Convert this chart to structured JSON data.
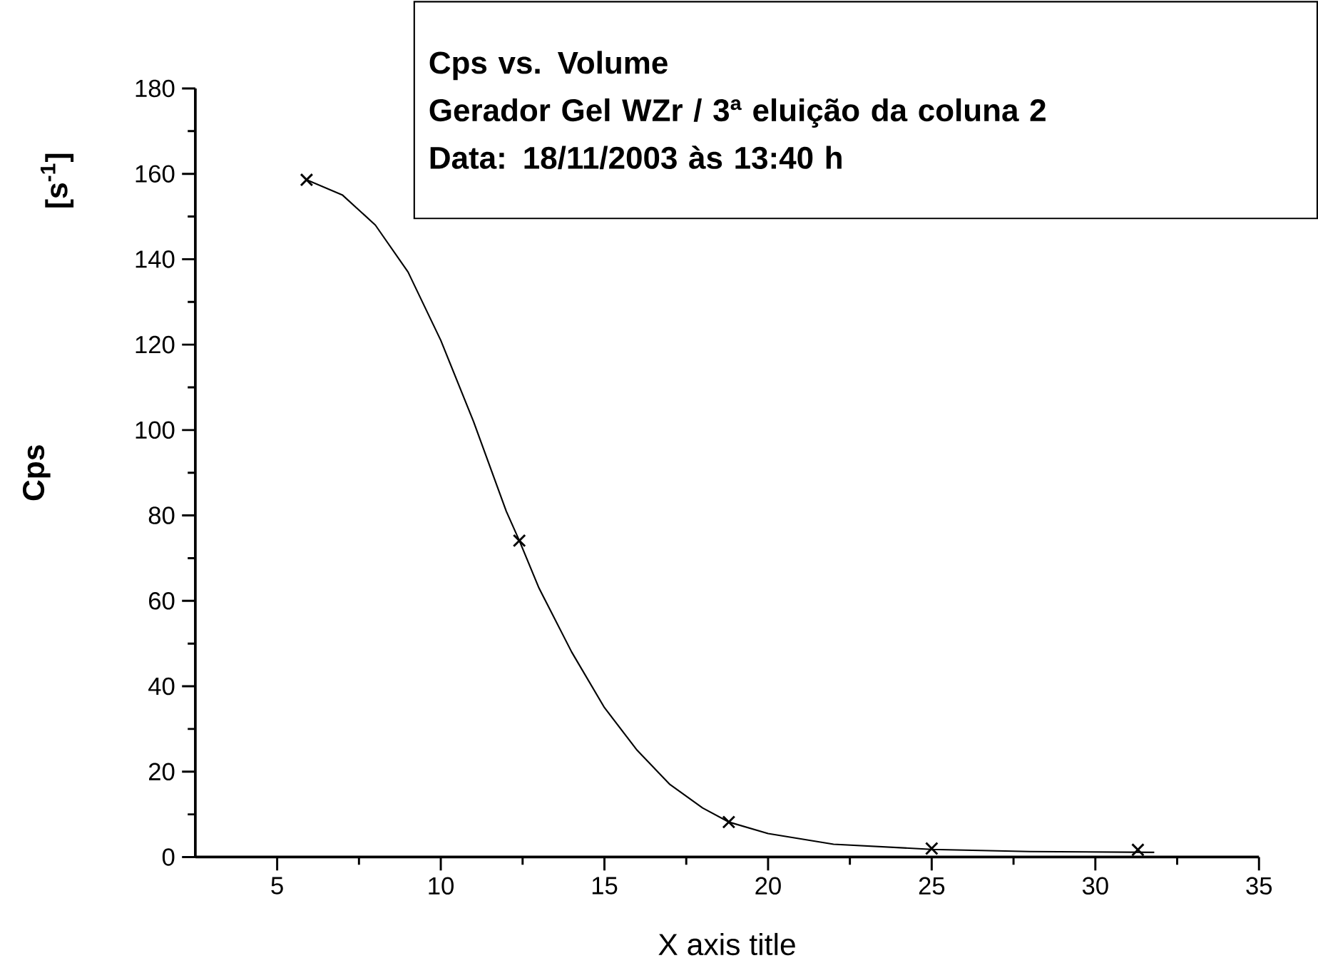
{
  "chart_data": {
    "type": "scatter",
    "title": "Cps vs. Volume",
    "subtitle": "Gerador Gel WZr / 3ª eluição da coluna 2",
    "annotations": [
      "Data: 18/11/2003 às 13:40 h",
      "[s$^{-1}$]"
    ],
    "xlabel": "X axis title",
    "ylabel": "Cps",
    "xlim": [
      2.5,
      35
    ],
    "ylim": [
      0,
      180
    ],
    "xticks": [
      5,
      10,
      15,
      20,
      25,
      30,
      35
    ],
    "yticks": [
      0,
      20,
      40,
      60,
      80,
      100,
      120,
      140,
      160,
      180
    ],
    "series": [
      {
        "type": "scatter",
        "marker": "cross",
        "color": "#000000",
        "x": [
          5.9,
          12.4,
          18.8,
          25.0,
          31.3
        ],
        "values": [
          158.6,
          74.1,
          8.2,
          2.0,
          1.7
        ]
      },
      {
        "type": "line",
        "marker": "none",
        "line_style": "solid",
        "color": "#000000",
        "x": [
          5.9,
          7,
          8,
          9,
          10,
          11,
          12,
          12.4,
          13,
          14,
          15,
          16,
          17,
          18,
          18.8,
          20,
          22,
          25,
          28,
          31.8
        ],
        "values": [
          158.6,
          155,
          148,
          137,
          121,
          102,
          81,
          74.1,
          63,
          48,
          35,
          25,
          17,
          11.5,
          8.2,
          5.5,
          3,
          1.8,
          1.3,
          1.1
        ]
      }
    ]
  }
}
